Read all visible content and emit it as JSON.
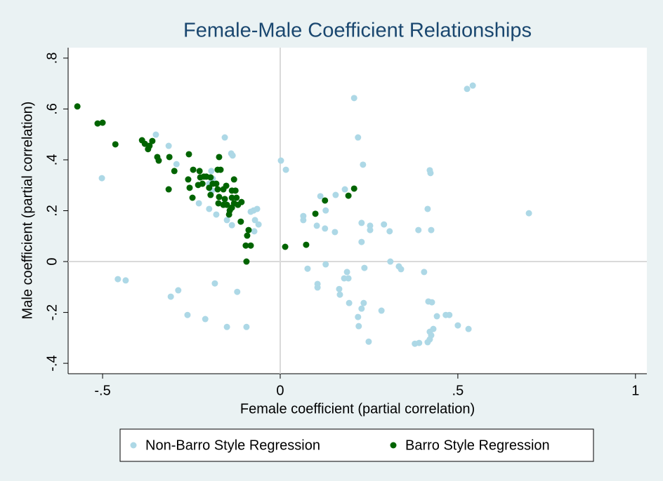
{
  "chart_data": {
    "type": "scatter",
    "title": "Female-Male Coefficient Relationships",
    "x_label": "Female coefficient (partial correlation)",
    "y_label": "Male coefficient (partial correlation)",
    "xlim": [
      -0.597,
      1.032
    ],
    "ylim": [
      -0.441,
      0.841
    ],
    "xticks": [
      {
        "value": -0.5,
        "label": "-.5"
      },
      0,
      {
        "value": 0.5,
        "label": ".5"
      },
      1
    ],
    "yticks": [
      {
        "value": -0.4,
        "label": "-.4"
      },
      {
        "value": -0.2,
        "label": "-.2"
      },
      0,
      {
        "value": 0.2,
        "label": ".2"
      },
      {
        "value": 0.4,
        "label": ".4"
      },
      {
        "value": 0.6,
        "label": ".6"
      },
      {
        "value": 0.8,
        "label": ".8"
      }
    ],
    "reference_lines": {
      "x": 0,
      "y": 0
    },
    "legend": "bottom",
    "series": [
      {
        "name": "Non-Barro Style Regression",
        "color": "#add8e6",
        "x": [
          -0.35,
          -0.502,
          -0.314,
          -0.292,
          -0.156,
          -0.138,
          -0.134,
          -0.194,
          -0.19,
          -0.2,
          -0.229,
          -0.2,
          -0.18,
          -0.15,
          -0.136,
          -0.156,
          -0.192,
          -0.083,
          -0.075,
          -0.065,
          -0.071,
          -0.061,
          -0.073,
          -0.457,
          -0.435,
          -0.308,
          -0.287,
          -0.261,
          -0.211,
          -0.184,
          -0.15,
          -0.121,
          -0.095,
          0.002,
          0.016,
          0.208,
          0.219,
          0.233,
          0.526,
          0.542,
          0.7,
          0.421,
          0.423,
          0.415,
          0.425,
          0.389,
          0.065,
          0.065,
          0.113,
          0.103,
          0.128,
          0.126,
          0.154,
          0.156,
          0.182,
          0.229,
          0.253,
          0.253,
          0.292,
          0.308,
          0.229,
          0.077,
          0.128,
          0.105,
          0.105,
          0.188,
          0.192,
          0.18,
          0.237,
          0.166,
          0.168,
          0.194,
          0.229,
          0.235,
          0.219,
          0.221,
          0.249,
          0.285,
          0.31,
          0.334,
          0.34,
          0.405,
          0.417,
          0.427,
          0.421,
          0.425,
          0.421,
          0.415,
          0.379,
          0.391,
          0.431,
          0.441,
          0.466,
          0.476,
          0.5,
          0.53
        ],
        "y": [
          0.499,
          0.328,
          0.455,
          0.383,
          0.488,
          0.425,
          0.417,
          0.356,
          0.326,
          0.306,
          0.229,
          0.207,
          0.185,
          0.163,
          0.143,
          0.229,
          0.279,
          0.196,
          0.201,
          0.207,
          0.163,
          0.146,
          0.119,
          -0.069,
          -0.074,
          -0.138,
          -0.113,
          -0.21,
          -0.226,
          -0.086,
          -0.257,
          -0.119,
          -0.257,
          0.397,
          0.361,
          0.643,
          0.488,
          0.381,
          0.679,
          0.692,
          0.19,
          0.359,
          0.348,
          0.207,
          0.124,
          0.124,
          0.179,
          0.163,
          0.257,
          0.141,
          0.201,
          0.13,
          0.116,
          0.262,
          0.284,
          0.152,
          0.141,
          0.124,
          0.146,
          0.119,
          0.077,
          -0.028,
          -0.011,
          -0.088,
          -0.102,
          -0.041,
          -0.066,
          -0.066,
          -0.025,
          -0.108,
          -0.13,
          -0.163,
          -0.185,
          -0.163,
          -0.218,
          -0.254,
          -0.315,
          -0.193,
          0,
          -0.019,
          -0.03,
          -0.041,
          -0.157,
          -0.16,
          -0.276,
          -0.29,
          -0.306,
          -0.317,
          -0.323,
          -0.32,
          -0.265,
          -0.215,
          -0.21,
          -0.21,
          -0.251,
          -0.265
        ]
      },
      {
        "name": "Barro Style Regression",
        "color": "#006400",
        "x": [
          -0.571,
          -0.514,
          -0.5,
          -0.464,
          -0.389,
          -0.381,
          -0.368,
          -0.36,
          -0.372,
          -0.346,
          -0.342,
          -0.312,
          -0.298,
          -0.314,
          -0.257,
          -0.245,
          -0.259,
          -0.255,
          -0.247,
          -0.227,
          -0.225,
          -0.231,
          -0.219,
          -0.215,
          -0.208,
          -0.196,
          -0.19,
          -0.2,
          -0.196,
          -0.176,
          -0.18,
          -0.176,
          -0.172,
          -0.174,
          -0.16,
          -0.156,
          -0.16,
          -0.152,
          -0.15,
          -0.172,
          -0.168,
          -0.136,
          -0.136,
          -0.13,
          -0.136,
          -0.142,
          -0.144,
          -0.13,
          -0.126,
          -0.123,
          -0.119,
          -0.109,
          -0.111,
          -0.093,
          -0.089,
          -0.097,
          -0.083,
          -0.095,
          0.014,
          0.073,
          0.099,
          0.126,
          0.192,
          0.208
        ],
        "y": [
          0.61,
          0.543,
          0.546,
          0.461,
          0.477,
          0.463,
          0.455,
          0.474,
          0.442,
          0.411,
          0.397,
          0.411,
          0.356,
          0.284,
          0.422,
          0.361,
          0.323,
          0.29,
          0.251,
          0.356,
          0.331,
          0.301,
          0.306,
          0.334,
          0.334,
          0.331,
          0.306,
          0.29,
          0.262,
          0.361,
          0.306,
          0.284,
          0.254,
          0.229,
          0.284,
          0.246,
          0.223,
          0.298,
          0.223,
          0.411,
          0.361,
          0.279,
          0.251,
          0.229,
          0.212,
          0.201,
          0.185,
          0.323,
          0.279,
          0.251,
          0.223,
          0.234,
          0.157,
          0.102,
          0.124,
          0.063,
          0.063,
          0,
          0.058,
          0.066,
          0.188,
          0.24,
          0.259,
          0.287
        ]
      }
    ]
  }
}
